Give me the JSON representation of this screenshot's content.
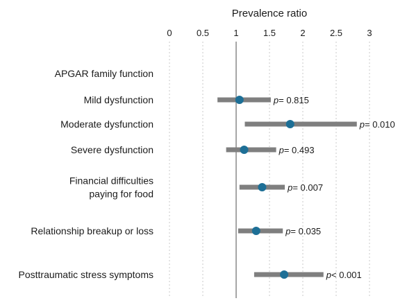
{
  "chart_data": {
    "type": "forest",
    "title": "Prevalence ratio",
    "x_ticks": [
      "0",
      "0.5",
      "1",
      "1.5",
      "2",
      "2.5",
      "3"
    ],
    "xlim": [
      0,
      3
    ],
    "reference_line": 1,
    "grid": "vertical-dashed",
    "colors": {
      "point": "#1d6f96",
      "interval": "#7f7f7f",
      "reference": "#a6a6a6",
      "grid": "#c8c8c8"
    },
    "rows": [
      {
        "label_lines": [
          "APGAR family function"
        ],
        "has_estimate": false
      },
      {
        "label_lines": [
          "Mild dysfunction"
        ],
        "has_estimate": true,
        "estimate": 1.05,
        "lower": 0.72,
        "upper": 1.52,
        "p_label": "p",
        "p_rest": "= 0.815"
      },
      {
        "label_lines": [
          "Moderate dysfunction"
        ],
        "has_estimate": true,
        "estimate": 1.81,
        "lower": 1.13,
        "upper": 2.81,
        "p_label": "p",
        "p_rest": "= 0.010"
      },
      {
        "label_lines": [
          "Severe dysfunction"
        ],
        "has_estimate": true,
        "estimate": 1.12,
        "lower": 0.85,
        "upper": 1.6,
        "p_label": "p",
        "p_rest": "= 0.493"
      },
      {
        "label_lines": [
          "Financial difficulties",
          "paying for food"
        ],
        "has_estimate": true,
        "estimate": 1.39,
        "lower": 1.05,
        "upper": 1.73,
        "p_label": "p",
        "p_rest": "= 0.007"
      },
      {
        "label_lines": [
          "Relationship breakup or loss"
        ],
        "has_estimate": true,
        "estimate": 1.3,
        "lower": 1.03,
        "upper": 1.7,
        "p_label": "p",
        "p_rest": "= 0.035"
      },
      {
        "label_lines": [
          "Posttraumatic stress symptoms"
        ],
        "has_estimate": true,
        "estimate": 1.72,
        "lower": 1.27,
        "upper": 2.31,
        "p_label": "p",
        "p_rest": "< 0.001"
      }
    ]
  }
}
